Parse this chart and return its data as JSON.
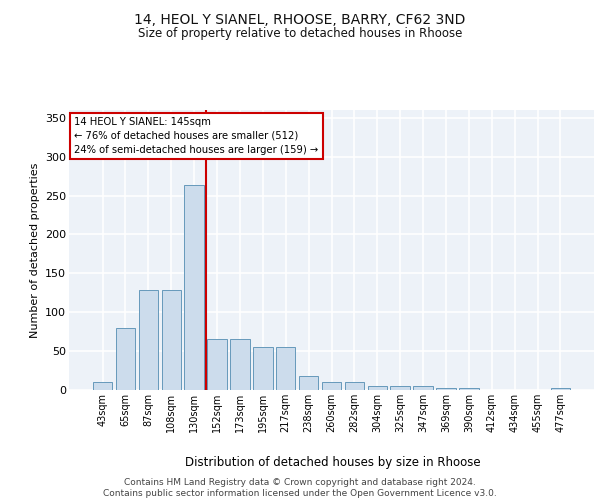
{
  "title_line1": "14, HEOL Y SIANEL, RHOOSE, BARRY, CF62 3ND",
  "title_line2": "Size of property relative to detached houses in Rhoose",
  "xlabel": "Distribution of detached houses by size in Rhoose",
  "ylabel": "Number of detached properties",
  "bar_color": "#ccdcec",
  "bar_edge_color": "#6699bb",
  "categories": [
    "43sqm",
    "65sqm",
    "87sqm",
    "108sqm",
    "130sqm",
    "152sqm",
    "173sqm",
    "195sqm",
    "217sqm",
    "238sqm",
    "260sqm",
    "282sqm",
    "304sqm",
    "325sqm",
    "347sqm",
    "369sqm",
    "390sqm",
    "412sqm",
    "434sqm",
    "455sqm",
    "477sqm"
  ],
  "values": [
    10,
    80,
    128,
    128,
    263,
    65,
    65,
    55,
    55,
    18,
    10,
    10,
    5,
    5,
    5,
    3,
    2,
    0,
    0,
    0,
    2
  ],
  "vline_x": 4.5,
  "vline_color": "#cc0000",
  "annotation_line1": "14 HEOL Y SIANEL: 145sqm",
  "annotation_line2": "← 76% of detached houses are smaller (512)",
  "annotation_line3": "24% of semi-detached houses are larger (159) →",
  "annotation_box_edgecolor": "#cc0000",
  "ylim": [
    0,
    360
  ],
  "yticks": [
    0,
    50,
    100,
    150,
    200,
    250,
    300,
    350
  ],
  "footer_text": "Contains HM Land Registry data © Crown copyright and database right 2024.\nContains public sector information licensed under the Open Government Licence v3.0.",
  "bg_color": "#edf2f8",
  "grid_color": "#ffffff"
}
